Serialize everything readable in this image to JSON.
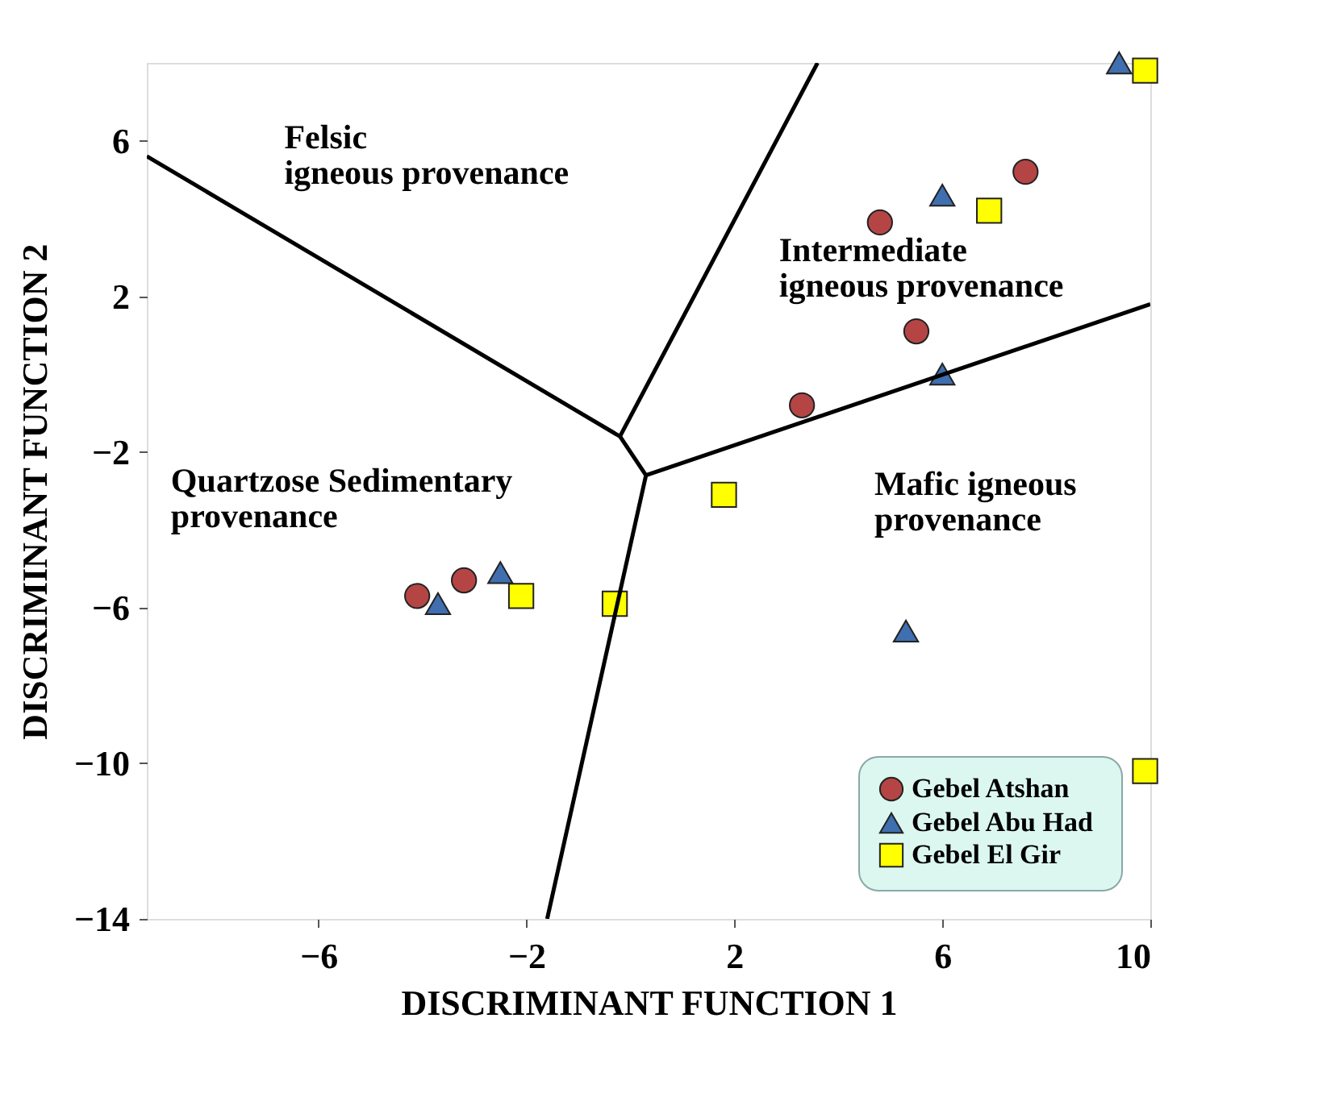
{
  "chart_data": {
    "type": "scatter",
    "xlabel": "DISCRIMINANT FUNCTION 1",
    "ylabel": "DISCRIMINANT FUNCTION 2",
    "xlim": [
      -9.3,
      10
    ],
    "xticks": [
      -6,
      -2,
      2,
      6,
      10
    ],
    "ylim": [
      -14,
      8
    ],
    "yticks": [
      -14,
      -10,
      -6,
      -2,
      2,
      6
    ],
    "grid": false,
    "legend": "bottom right",
    "series": [
      {
        "name": "Gebel Atshan",
        "color": "#b54545",
        "marker": "circle",
        "x": [
          7.6,
          4.8,
          5.5,
          3.3,
          -4.1,
          -3.2
        ],
        "values": [
          5.2,
          3.9,
          1.1,
          -0.8,
          -5.7,
          -5.3
        ]
      },
      {
        "name": "Gebel  Abu Had",
        "color": "#3f6fae",
        "marker": "triangle",
        "x": [
          9.4,
          6.0,
          6.0,
          -3.7,
          -2.5,
          5.3
        ],
        "values": [
          8.0,
          4.6,
          0.0,
          -5.9,
          -5.1,
          -6.6
        ]
      },
      {
        "name": "Gebel El Gir",
        "color": "#ffff00",
        "marker": "square",
        "x": [
          9.9,
          6.9,
          1.8,
          -2.1,
          -0.3,
          9.9
        ],
        "values": [
          7.8,
          4.2,
          -3.1,
          -5.7,
          -5.9,
          -10.2
        ]
      },
      {
        "type": "line",
        "color": "#000000",
        "marker": "none",
        "line_style": "solid",
        "x": [
          -9.3,
          -0.2,
          3.6
        ],
        "values": [
          5.6,
          -1.6,
          8.0
        ]
      },
      {
        "type": "line",
        "color": "#000000",
        "marker": "none",
        "line_style": "solid",
        "x": [
          -0.2,
          0.3,
          10.0
        ],
        "values": [
          -1.6,
          -2.6,
          1.8
        ]
      },
      {
        "type": "line",
        "color": "#000000",
        "marker": "none",
        "line_style": "solid",
        "x": [
          0.3,
          -1.6
        ],
        "values": [
          -2.6,
          -14.0
        ]
      }
    ],
    "annotations": [
      "Felsic\nigneous provenance",
      "Intermediate\nigneous provenance",
      "Quartzose Sedimentary\nprovenance",
      "Mafic igneous\nprovenance"
    ]
  }
}
